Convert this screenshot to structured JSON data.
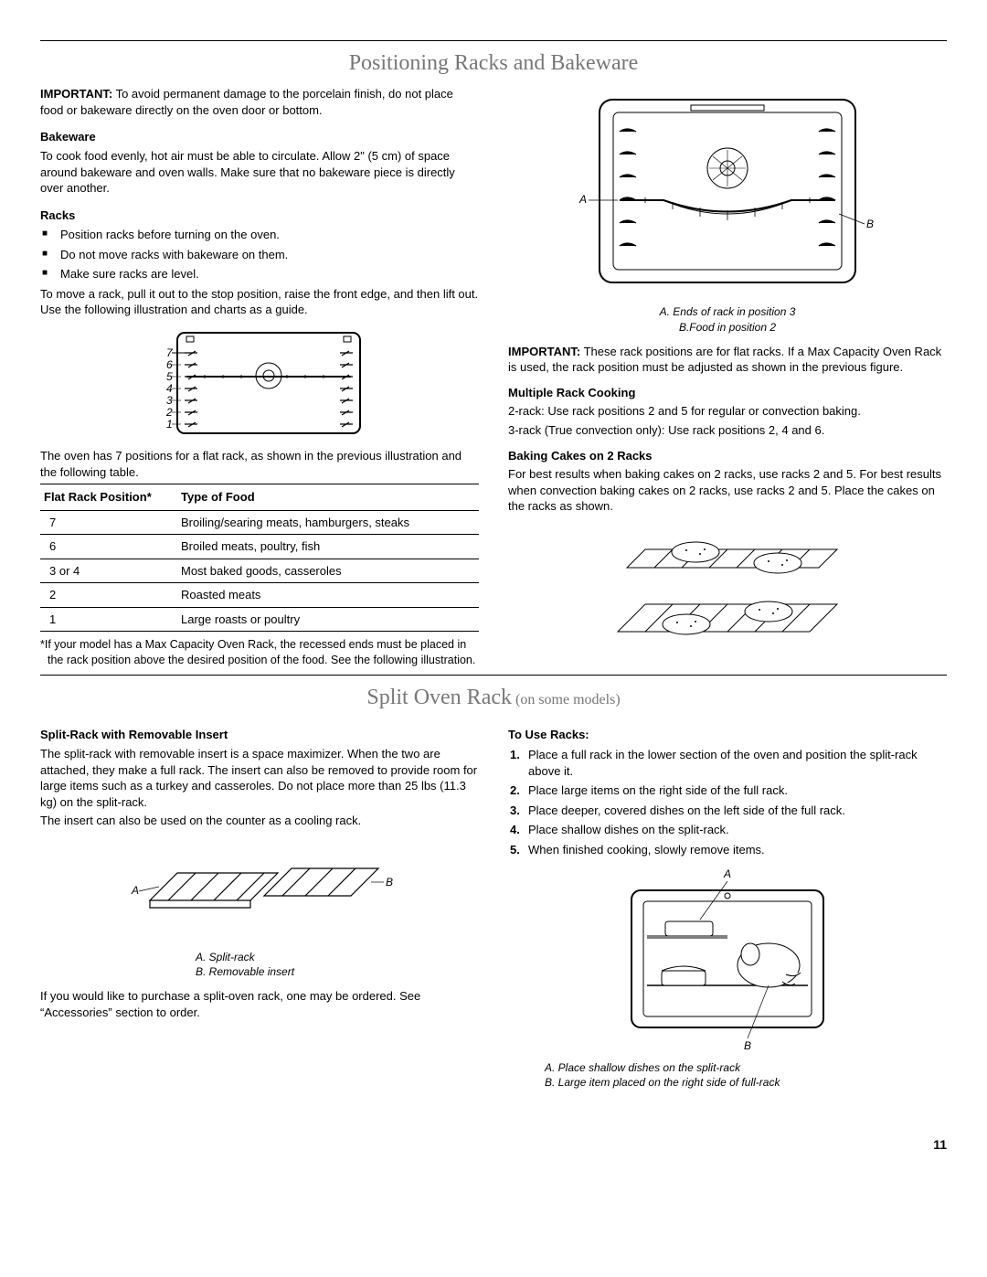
{
  "section1": {
    "title": "Positioning Racks and Bakeware",
    "important_label": "IMPORTANT:",
    "important_text": " To avoid permanent damage to the porcelain finish, do not place food or bakeware directly on the oven door or bottom.",
    "bakeware_heading": "Bakeware",
    "bakeware_text": "To cook food evenly, hot air must be able to circulate. Allow 2\" (5 cm) of space around bakeware and oven walls. Make sure that no bakeware piece is directly over another.",
    "racks_heading": "Racks",
    "rack_bullets": [
      "Position racks before turning on the oven.",
      "Do not move racks with bakeware on them.",
      "Make sure racks are level."
    ],
    "move_rack_text": "To move a rack, pull it out to the stop position, raise the front edge, and then lift out. Use the following illustration and charts as a guide.",
    "positions_text": "The oven has 7 positions for a flat rack, as shown in the previous illustration and the following table.",
    "table": {
      "col1": "Flat Rack Position*",
      "col2": "Type of Food",
      "rows": [
        [
          "7",
          "Broiling/searing meats, hamburgers, steaks"
        ],
        [
          "6",
          "Broiled meats, poultry, fish"
        ],
        [
          "3 or 4",
          "Most baked goods, casseroles"
        ],
        [
          "2",
          "Roasted meats"
        ],
        [
          "1",
          "Large roasts or poultry"
        ]
      ]
    },
    "footnote": "*If your model has a Max Capacity Oven Rack, the recessed ends must be placed in the rack position above the desired position of the food. See the following illustration.",
    "rack_labels": [
      "7",
      "6",
      "5",
      "4",
      "3",
      "2",
      "1"
    ],
    "right": {
      "diagram_caption_a": "A. Ends of rack in position 3",
      "diagram_caption_b": "B.Food in position 2",
      "important2_label": "IMPORTANT:",
      "important2_text": " These rack positions are for flat racks. If a Max Capacity Oven Rack is used, the rack position must be adjusted as shown in the previous figure.",
      "multi_heading": "Multiple Rack Cooking",
      "multi_p1": "2-rack: Use rack positions 2 and 5 for regular or convection baking.",
      "multi_p2": "3-rack (True convection only): Use rack positions 2, 4 and 6.",
      "cakes_heading": "Baking Cakes on 2 Racks",
      "cakes_text": "For best results when baking cakes on 2 racks, use racks 2 and 5. For best results when convection baking cakes on 2 racks, use racks 2 and 5. Place the cakes on the racks as shown.",
      "label_A": "A",
      "label_B": "B"
    }
  },
  "section2": {
    "title_main": "Split Oven Rack",
    "title_sub": " (on some models)",
    "left": {
      "heading": "Split-Rack with Removable Insert",
      "p1": "The split-rack with removable insert is a space maximizer. When the two are attached, they make a full rack. The insert can also be removed to provide room for large items such as a turkey and casseroles. Do not place more than 25 lbs (11.3 kg) on the split-rack.",
      "p2": "The insert can also be used on the counter as a cooling rack.",
      "caption_a": "A. Split-rack",
      "caption_b": "B. Removable insert",
      "p3": "If you would like to purchase a split-oven rack, one may be ordered. See “Accessories” section to order.",
      "label_A": "A",
      "label_B": "B"
    },
    "right": {
      "heading": "To Use Racks:",
      "steps": [
        "Place a full rack in the lower section of the oven and position the split-rack above it.",
        "Place large items on the right side of the full rack.",
        "Place deeper, covered dishes on the left side of the full rack.",
        "Place shallow dishes on the split-rack.",
        "When finished cooking, slowly remove items."
      ],
      "label_A": "A",
      "label_B": "B",
      "caption_a": "A. Place shallow dishes on the split-rack",
      "caption_b": "B. Large item placed on the right side of full-rack"
    }
  },
  "page_number": "11",
  "colors": {
    "title_grey": "#777777",
    "line": "#000000",
    "text": "#000000"
  }
}
